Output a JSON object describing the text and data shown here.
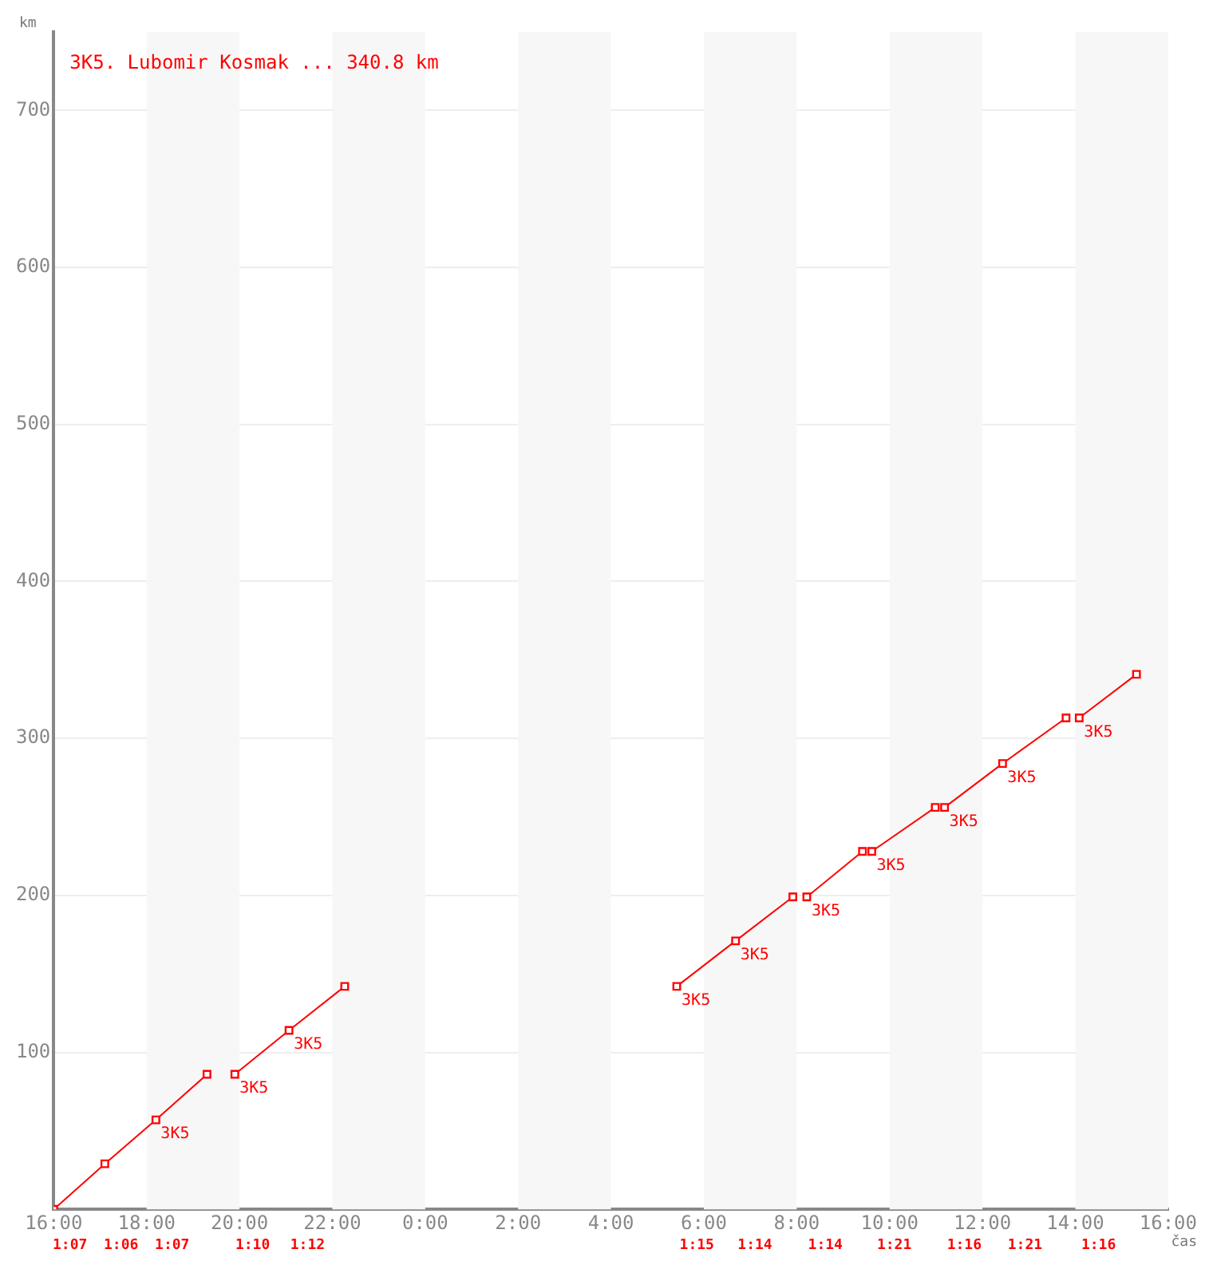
{
  "chart_data": {
    "type": "line",
    "title": "3K5. Lubomir Kosmak ... 340.8 km",
    "xlabel": "čas",
    "ylabel": "km",
    "xlim": [
      "--01-01T16:00",
      "--01-02T16:00"
    ],
    "ylim": [
      0,
      750
    ],
    "xticks": [
      {
        "value": "--01-01T16:00",
        "label": "16:00"
      },
      {
        "value": "--01-01T18:00",
        "label": "18:00"
      },
      {
        "value": "--01-01T20:00",
        "label": "20:00"
      },
      {
        "value": "--01-01T22:00",
        "label": "22:00"
      },
      {
        "value": "--01-02T00:00",
        "label": "0:00"
      },
      {
        "value": "--01-02T02:00",
        "label": "2:00"
      },
      {
        "value": "--01-02T04:00",
        "label": "4:00"
      },
      {
        "value": "--01-02T06:00",
        "label": "6:00"
      },
      {
        "value": "--01-02T08:00",
        "label": "8:00"
      },
      {
        "value": "--01-02T10:00",
        "label": "10:00"
      },
      {
        "value": "--01-02T12:00",
        "label": "12:00"
      },
      {
        "value": "--01-02T14:00",
        "label": "14:00"
      },
      {
        "value": "--01-02T16:00",
        "label": "16:00"
      }
    ],
    "yticks": [
      100,
      200,
      300,
      400,
      500,
      600,
      700
    ],
    "series": [
      {
        "color": "#ff0000",
        "x": [
          "--01-01T16:00",
          "--01-01T17:06",
          "--01-01T18:12",
          "--01-01T19:18"
        ],
        "values": [
          0,
          29,
          57,
          86
        ]
      },
      {
        "color": "#ff0000",
        "x": [
          "--01-01T19:54",
          "--01-01T21:04",
          "--01-01T22:16"
        ],
        "values": [
          86,
          114,
          142
        ]
      },
      {
        "color": "#ff0000",
        "x": [
          "--01-02T05:25",
          "--01-02T06:41",
          "--01-02T07:55"
        ],
        "values": [
          142,
          171,
          199
        ]
      },
      {
        "color": "#ff0000",
        "x": [
          "--01-02T08:13",
          "--01-02T09:25"
        ],
        "values": [
          199,
          228
        ]
      },
      {
        "color": "#ff0000",
        "x": [
          "--01-02T09:37",
          "--01-02T10:59"
        ],
        "values": [
          228,
          256
        ]
      },
      {
        "color": "#ff0000",
        "x": [
          "--01-02T11:11",
          "--01-02T12:26",
          "--01-02T13:48"
        ],
        "values": [
          256,
          284,
          313
        ]
      },
      {
        "color": "#ff0000",
        "x": [
          "--01-02T14:05",
          "--01-02T15:19"
        ],
        "values": [
          313,
          340.8
        ]
      }
    ],
    "bands": [
      {
        "axis": "x",
        "from": "--01-01T18:00",
        "to": "--01-01T20:00",
        "color": "#f7f7f7"
      },
      {
        "axis": "x",
        "from": "--01-01T22:00",
        "to": "--01-02T00:00",
        "color": "#f7f7f7"
      },
      {
        "axis": "x",
        "from": "--01-02T02:00",
        "to": "--01-02T04:00",
        "color": "#f7f7f7"
      },
      {
        "axis": "x",
        "from": "--01-02T06:00",
        "to": "--01-02T08:00",
        "color": "#f7f7f7"
      },
      {
        "axis": "x",
        "from": "--01-02T10:00",
        "to": "--01-02T12:00",
        "color": "#f7f7f7"
      },
      {
        "axis": "x",
        "from": "--01-02T14:00",
        "to": "--01-02T16:00",
        "color": "#f7f7f7"
      }
    ],
    "annotations": [
      {
        "text": "3K5",
        "x": "--01-01T18:12",
        "y": 57
      },
      {
        "text": "3K5",
        "x": "--01-01T19:54",
        "y": 86
      },
      {
        "text": "3K5",
        "x": "--01-01T21:04",
        "y": 114
      },
      {
        "text": "3K5",
        "x": "--01-02T05:25",
        "y": 142
      },
      {
        "text": "3K5",
        "x": "--01-02T06:41",
        "y": 171
      },
      {
        "text": "3K5",
        "x": "--01-02T08:13",
        "y": 199
      },
      {
        "text": "3K5",
        "x": "--01-02T09:37",
        "y": 228
      },
      {
        "text": "3K5",
        "x": "--01-02T11:11",
        "y": 256
      },
      {
        "text": "3K5",
        "x": "--01-02T12:26",
        "y": 284
      },
      {
        "text": "3K5",
        "x": "--01-02T14:05",
        "y": 313
      },
      "1:07",
      "1:06",
      "1:07",
      "1:10",
      "1:12",
      "1:15",
      "1:14",
      "1:14",
      "1:21",
      "1:16",
      "1:21",
      "1:16"
    ],
    "grid": "y",
    "marker": "square",
    "line_style": "solid",
    "legend": false
  }
}
